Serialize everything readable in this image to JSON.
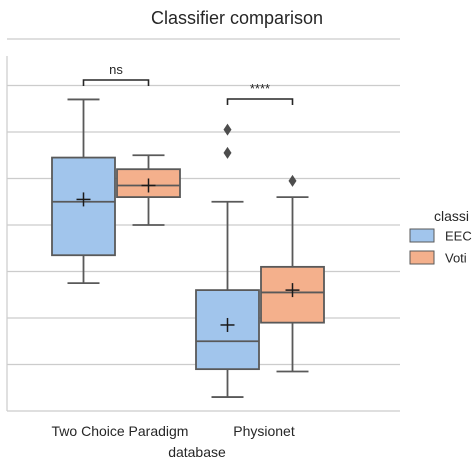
{
  "chart_data": {
    "type": "box",
    "title": "Classifier comparison",
    "xlabel": "database",
    "ylabel": "",
    "categories": [
      "Two Choice Paradigm",
      "Physionet"
    ],
    "ylim": [
      0.0,
      8.0
    ],
    "grid": "horizontal",
    "legend": {
      "title": "classi",
      "placement": "right",
      "entries": [
        "EEC",
        "Voti"
      ]
    },
    "series": [
      {
        "name": "EEC",
        "color": "#a1c5ec",
        "boxes": [
          {
            "category": "Two Choice Paradigm",
            "whisker_low": 2.75,
            "q1": 3.35,
            "median": 4.5,
            "q3": 5.45,
            "whisker_high": 6.7,
            "mean": 4.55,
            "outliers": []
          },
          {
            "category": "Physionet",
            "whisker_low": 0.3,
            "q1": 0.9,
            "median": 1.5,
            "q3": 2.6,
            "whisker_high": 4.5,
            "mean": 1.85,
            "outliers": [
              5.55,
              6.05
            ]
          }
        ]
      },
      {
        "name": "Voti",
        "color": "#f4b08c",
        "boxes": [
          {
            "category": "Two Choice Paradigm",
            "whisker_low": 4.0,
            "q1": 4.6,
            "median": 4.85,
            "q3": 5.2,
            "whisker_high": 5.5,
            "mean": 4.85,
            "outliers": []
          },
          {
            "category": "Physionet",
            "whisker_low": 0.85,
            "q1": 1.9,
            "median": 2.55,
            "q3": 3.1,
            "whisker_high": 4.6,
            "mean": 2.6,
            "outliers": [
              4.95
            ]
          }
        ]
      }
    ],
    "annotations": [
      {
        "category": "Two Choice Paradigm",
        "text": "ns"
      },
      {
        "category": "Physionet",
        "text": "****"
      }
    ]
  },
  "colors": {
    "eeg_fill": "#a1c5ec",
    "vote_fill": "#f4b08c",
    "box_edge": "#595959",
    "grid": "#cccccc",
    "text": "#262626"
  }
}
